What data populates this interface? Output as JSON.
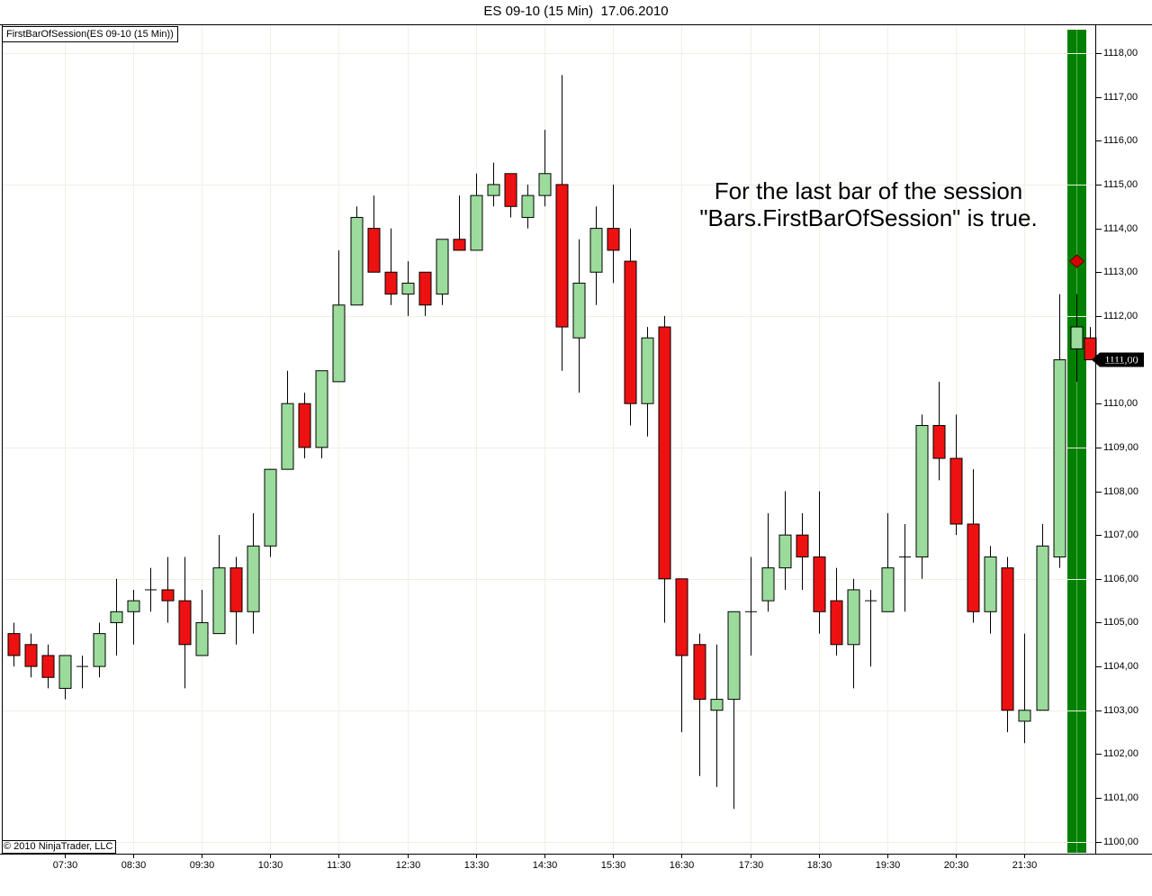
{
  "window": {
    "title": "ES 09-10 (15 Min)  17.06.2010"
  },
  "chart": {
    "indicator_label": "FirstBarOfSession(ES 09-10 (15 Min))",
    "copyright": "© 2010 NinjaTrader, LLC"
  },
  "chart_data": {
    "type": "candlestick",
    "title": "ES 09-10 (15 Min)  17.06.2010",
    "instrument": "ES 09-10",
    "interval": "15 Min",
    "date": "17.06.2010",
    "ylim": [
      1099.7,
      1118.7
    ],
    "grid": "on",
    "annotation": [
      "For the last bar of the session",
      "\"Bars.FirstBarOfSession\" is true."
    ],
    "price_marker": {
      "label": "1111,00",
      "price": 1111.0
    },
    "h_gridlines": [
      1100,
      1103,
      1106,
      1109,
      1112,
      1115,
      1118
    ],
    "y_ticks": [
      {
        "v": 1118,
        "label": "1118,00"
      },
      {
        "v": 1117,
        "label": "1117,00"
      },
      {
        "v": 1116,
        "label": "1116,00"
      },
      {
        "v": 1115,
        "label": "1115,00"
      },
      {
        "v": 1114,
        "label": "1114,00"
      },
      {
        "v": 1113,
        "label": "1113,00"
      },
      {
        "v": 1112,
        "label": "1112,00"
      },
      {
        "v": 1111,
        "label": "1111,00"
      },
      {
        "v": 1110,
        "label": "1110,00"
      },
      {
        "v": 1109,
        "label": "1109,00"
      },
      {
        "v": 1108,
        "label": "1108,00"
      },
      {
        "v": 1107,
        "label": "1107,00"
      },
      {
        "v": 1106,
        "label": "1106,00"
      },
      {
        "v": 1105,
        "label": "1105,00"
      },
      {
        "v": 1104,
        "label": "1104,00"
      },
      {
        "v": 1103,
        "label": "1103,00"
      },
      {
        "v": 1102,
        "label": "1102,00"
      },
      {
        "v": 1101,
        "label": "1101,00"
      },
      {
        "v": 1100,
        "label": "1100,00"
      }
    ],
    "x_ticks": [
      {
        "label": "07:30",
        "bar": 3
      },
      {
        "label": "08:30",
        "bar": 7
      },
      {
        "label": "09:30",
        "bar": 11
      },
      {
        "label": "10:30",
        "bar": 15
      },
      {
        "label": "11:30",
        "bar": 19
      },
      {
        "label": "12:30",
        "bar": 23
      },
      {
        "label": "13:30",
        "bar": 27
      },
      {
        "label": "14:30",
        "bar": 31
      },
      {
        "label": "15:30",
        "bar": 35
      },
      {
        "label": "16:30",
        "bar": 39
      },
      {
        "label": "17:30",
        "bar": 43
      },
      {
        "label": "18:30",
        "bar": 47
      },
      {
        "label": "19:30",
        "bar": 51
      },
      {
        "label": "20:30",
        "bar": 55
      },
      {
        "label": "21:30",
        "bar": 59
      }
    ],
    "session_highlight": {
      "bar": 62,
      "band_color": "#008000",
      "diamond": {
        "price": 1113.25,
        "color": "#d60000"
      }
    },
    "bars": [
      {
        "t": "06:45",
        "o": 1104.75,
        "h": 1105.0,
        "l": 1104.0,
        "c": 1104.25
      },
      {
        "t": "07:00",
        "o": 1104.5,
        "h": 1104.75,
        "l": 1103.75,
        "c": 1104.0
      },
      {
        "t": "07:15",
        "o": 1104.25,
        "h": 1104.5,
        "l": 1103.5,
        "c": 1103.75
      },
      {
        "t": "07:30",
        "o": 1103.5,
        "h": 1104.25,
        "l": 1103.25,
        "c": 1104.25
      },
      {
        "t": "07:45",
        "o": 1104.0,
        "h": 1104.25,
        "l": 1103.5,
        "c": 1104.0
      },
      {
        "t": "08:00",
        "o": 1104.0,
        "h": 1105.0,
        "l": 1103.75,
        "c": 1104.75
      },
      {
        "t": "08:15",
        "o": 1105.0,
        "h": 1106.0,
        "l": 1104.25,
        "c": 1105.25
      },
      {
        "t": "08:30",
        "o": 1105.25,
        "h": 1105.75,
        "l": 1104.5,
        "c": 1105.5
      },
      {
        "t": "08:45",
        "o": 1105.75,
        "h": 1106.25,
        "l": 1105.25,
        "c": 1105.75
      },
      {
        "t": "09:00",
        "o": 1105.75,
        "h": 1106.5,
        "l": 1105.0,
        "c": 1105.5
      },
      {
        "t": "09:15",
        "o": 1105.5,
        "h": 1106.5,
        "l": 1103.5,
        "c": 1104.5
      },
      {
        "t": "09:30",
        "o": 1104.25,
        "h": 1105.75,
        "l": 1104.25,
        "c": 1105.0
      },
      {
        "t": "09:45",
        "o": 1104.75,
        "h": 1107.0,
        "l": 1104.75,
        "c": 1106.25
      },
      {
        "t": "10:00",
        "o": 1106.25,
        "h": 1106.5,
        "l": 1104.5,
        "c": 1105.25
      },
      {
        "t": "10:15",
        "o": 1105.25,
        "h": 1107.5,
        "l": 1104.75,
        "c": 1106.75
      },
      {
        "t": "10:30",
        "o": 1106.75,
        "h": 1108.5,
        "l": 1106.5,
        "c": 1108.5
      },
      {
        "t": "10:45",
        "o": 1108.5,
        "h": 1110.75,
        "l": 1108.5,
        "c": 1110.0
      },
      {
        "t": "11:00",
        "o": 1110.0,
        "h": 1110.25,
        "l": 1108.75,
        "c": 1109.0
      },
      {
        "t": "11:15",
        "o": 1109.0,
        "h": 1110.75,
        "l": 1108.75,
        "c": 1110.75
      },
      {
        "t": "11:30",
        "o": 1110.5,
        "h": 1113.5,
        "l": 1110.5,
        "c": 1112.25
      },
      {
        "t": "11:45",
        "o": 1112.25,
        "h": 1114.5,
        "l": 1112.25,
        "c": 1114.25
      },
      {
        "t": "12:00",
        "o": 1114.0,
        "h": 1114.75,
        "l": 1113.0,
        "c": 1113.0
      },
      {
        "t": "12:15",
        "o": 1113.0,
        "h": 1114.0,
        "l": 1112.25,
        "c": 1112.5
      },
      {
        "t": "12:30",
        "o": 1112.5,
        "h": 1113.25,
        "l": 1112.0,
        "c": 1112.75
      },
      {
        "t": "12:45",
        "o": 1113.0,
        "h": 1113.0,
        "l": 1112.0,
        "c": 1112.25
      },
      {
        "t": "13:00",
        "o": 1112.5,
        "h": 1113.75,
        "l": 1112.25,
        "c": 1113.75
      },
      {
        "t": "13:15",
        "o": 1113.75,
        "h": 1114.75,
        "l": 1113.5,
        "c": 1113.5
      },
      {
        "t": "13:30",
        "o": 1113.5,
        "h": 1115.25,
        "l": 1113.5,
        "c": 1114.75
      },
      {
        "t": "13:45",
        "o": 1114.75,
        "h": 1115.5,
        "l": 1114.5,
        "c": 1115.0
      },
      {
        "t": "14:00",
        "o": 1115.25,
        "h": 1115.25,
        "l": 1114.25,
        "c": 1114.5
      },
      {
        "t": "14:15",
        "o": 1114.25,
        "h": 1115.0,
        "l": 1114.0,
        "c": 1114.75
      },
      {
        "t": "14:30",
        "o": 1114.75,
        "h": 1116.25,
        "l": 1114.5,
        "c": 1115.25
      },
      {
        "t": "14:45",
        "o": 1115.0,
        "h": 1117.5,
        "l": 1110.75,
        "c": 1111.75
      },
      {
        "t": "15:00",
        "o": 1111.5,
        "h": 1113.75,
        "l": 1110.25,
        "c": 1112.75
      },
      {
        "t": "15:15",
        "o": 1113.0,
        "h": 1114.5,
        "l": 1112.25,
        "c": 1114.0
      },
      {
        "t": "15:30",
        "o": 1114.0,
        "h": 1115.0,
        "l": 1112.75,
        "c": 1113.5
      },
      {
        "t": "15:45",
        "o": 1113.25,
        "h": 1114.0,
        "l": 1109.5,
        "c": 1110.0
      },
      {
        "t": "16:00",
        "o": 1110.0,
        "h": 1111.75,
        "l": 1109.25,
        "c": 1111.5
      },
      {
        "t": "16:15",
        "o": 1111.75,
        "h": 1112.0,
        "l": 1105.0,
        "c": 1106.0
      },
      {
        "t": "16:30",
        "o": 1106.0,
        "h": 1106.0,
        "l": 1102.5,
        "c": 1104.25
      },
      {
        "t": "16:45",
        "o": 1104.5,
        "h": 1104.75,
        "l": 1101.5,
        "c": 1103.25
      },
      {
        "t": "17:00",
        "o": 1103.0,
        "h": 1104.5,
        "l": 1101.25,
        "c": 1103.25
      },
      {
        "t": "17:15",
        "o": 1103.25,
        "h": 1105.25,
        "l": 1100.75,
        "c": 1105.25
      },
      {
        "t": "17:30",
        "o": 1105.25,
        "h": 1106.5,
        "l": 1104.25,
        "c": 1105.25
      },
      {
        "t": "17:45",
        "o": 1105.5,
        "h": 1107.5,
        "l": 1105.25,
        "c": 1106.25
      },
      {
        "t": "18:00",
        "o": 1106.25,
        "h": 1108.0,
        "l": 1105.75,
        "c": 1107.0
      },
      {
        "t": "18:15",
        "o": 1107.0,
        "h": 1107.5,
        "l": 1105.75,
        "c": 1106.5
      },
      {
        "t": "18:30",
        "o": 1106.5,
        "h": 1108.0,
        "l": 1104.75,
        "c": 1105.25
      },
      {
        "t": "18:45",
        "o": 1105.5,
        "h": 1106.25,
        "l": 1104.25,
        "c": 1104.5
      },
      {
        "t": "19:00",
        "o": 1104.5,
        "h": 1106.0,
        "l": 1103.5,
        "c": 1105.75
      },
      {
        "t": "19:15",
        "o": 1105.5,
        "h": 1105.75,
        "l": 1104.0,
        "c": 1105.5
      },
      {
        "t": "19:30",
        "o": 1105.25,
        "h": 1107.5,
        "l": 1105.25,
        "c": 1106.25
      },
      {
        "t": "19:45",
        "o": 1106.5,
        "h": 1107.25,
        "l": 1105.25,
        "c": 1106.5
      },
      {
        "t": "20:00",
        "o": 1106.5,
        "h": 1109.75,
        "l": 1106.0,
        "c": 1109.5
      },
      {
        "t": "20:15",
        "o": 1109.5,
        "h": 1110.5,
        "l": 1108.25,
        "c": 1108.75
      },
      {
        "t": "20:30",
        "o": 1108.75,
        "h": 1109.75,
        "l": 1107.0,
        "c": 1107.25
      },
      {
        "t": "20:45",
        "o": 1107.25,
        "h": 1108.5,
        "l": 1105.0,
        "c": 1105.25
      },
      {
        "t": "21:00",
        "o": 1105.25,
        "h": 1106.75,
        "l": 1104.75,
        "c": 1106.5
      },
      {
        "t": "21:15",
        "o": 1106.25,
        "h": 1106.5,
        "l": 1102.5,
        "c": 1103.0
      },
      {
        "t": "21:30",
        "o": 1102.75,
        "h": 1104.75,
        "l": 1102.25,
        "c": 1103.0
      },
      {
        "t": "21:45",
        "o": 1103.0,
        "h": 1107.25,
        "l": 1103.0,
        "c": 1106.75
      },
      {
        "t": "22:00",
        "o": 1106.5,
        "h": 1112.5,
        "l": 1106.25,
        "c": 1111.0
      },
      {
        "t": "22:15",
        "o": 1111.25,
        "h": 1112.5,
        "l": 1110.5,
        "c": 1111.75
      },
      {
        "t": "22:30",
        "o": 1111.5,
        "h": 1111.75,
        "l": 1111.0,
        "c": 1111.0
      }
    ],
    "colors": {
      "up": "#9bdb9b",
      "down": "#ee1111",
      "wick": "#000000",
      "outline": "#000000",
      "grid": "#f0efe4",
      "session_band": "#008000",
      "marker_bg": "#000000",
      "marker_text": "#ffffff"
    }
  }
}
